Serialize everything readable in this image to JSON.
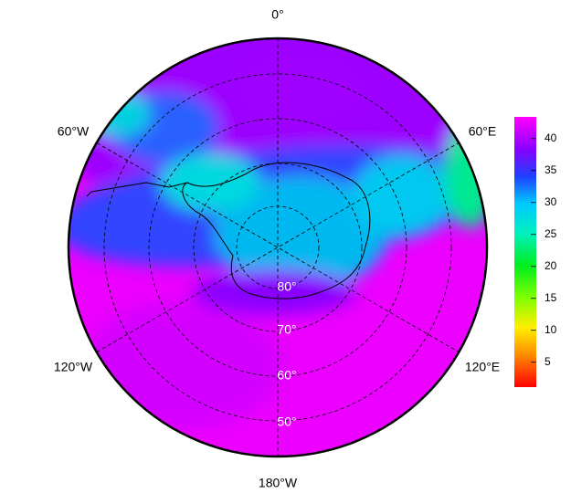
{
  "map": {
    "longitude_labels": [
      "0°",
      "60°E",
      "120°E",
      "180°W",
      "120°W",
      "60°W"
    ],
    "latitude_labels": [
      "80°",
      "70°",
      "60°",
      "50°"
    ],
    "colorbar": {
      "lim": [
        1.1,
        43.4
      ],
      "ticks": [
        5,
        10,
        15,
        20,
        25,
        30,
        35,
        40
      ]
    }
  }
}
